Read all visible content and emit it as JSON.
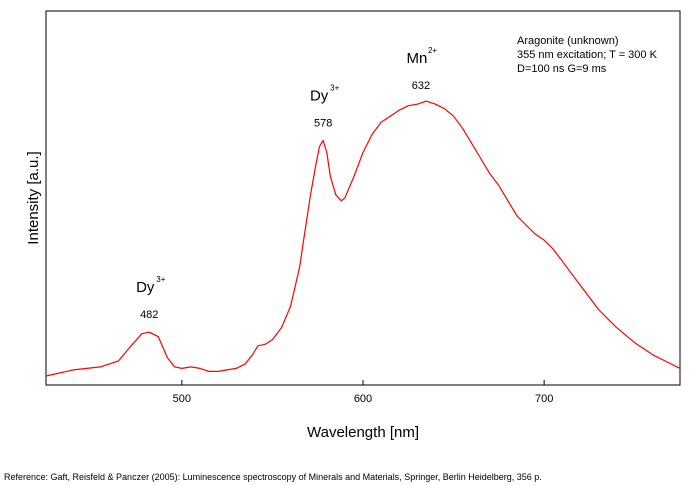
{
  "chart_data": {
    "type": "line",
    "title": "",
    "xlabel": "Wavelength [nm]",
    "ylabel": "Intensity [a.u.]",
    "xlim": [
      425,
      775
    ],
    "ylim": [
      0,
      1
    ],
    "x_ticks": [
      500,
      600,
      700
    ],
    "x_tick_labels": [
      "500",
      "600",
      "700"
    ],
    "y_tick_labels": [],
    "grid": false,
    "annotation_lines": [
      "Aragonite (unknown)",
      "355 nm excitation; T = 300 K",
      "D=100 ns G=9 ms"
    ],
    "peak_labels": [
      {
        "ion": "Dy",
        "charge": "3+",
        "wavelength": "482",
        "x": 482
      },
      {
        "ion": "Dy",
        "charge": "3+",
        "wavelength": "578",
        "x": 578
      },
      {
        "ion": "Mn",
        "charge": "2+",
        "wavelength": "632",
        "x": 632
      }
    ],
    "series": [
      {
        "color": "#ff0000",
        "x": [
          425,
          440,
          455,
          465,
          472,
          478,
          482,
          487,
          492,
          496,
          500,
          505,
          510,
          515,
          520,
          525,
          530,
          535,
          539,
          542,
          546,
          550,
          555,
          560,
          565,
          568,
          571,
          574,
          576,
          578,
          580,
          582,
          585,
          588,
          590,
          595,
          600,
          605,
          610,
          615,
          620,
          625,
          630,
          635,
          640,
          645,
          650,
          655,
          660,
          665,
          670,
          675,
          680,
          685,
          690,
          695,
          700,
          705,
          710,
          715,
          720,
          725,
          730,
          735,
          740,
          745,
          750,
          755,
          760,
          765,
          770,
          775
        ],
        "y": [
          0.02,
          0.04,
          0.05,
          0.07,
          0.12,
          0.16,
          0.165,
          0.15,
          0.08,
          0.05,
          0.045,
          0.05,
          0.045,
          0.035,
          0.035,
          0.04,
          0.045,
          0.06,
          0.09,
          0.12,
          0.125,
          0.14,
          0.18,
          0.25,
          0.38,
          0.5,
          0.62,
          0.72,
          0.78,
          0.8,
          0.76,
          0.68,
          0.62,
          0.6,
          0.61,
          0.68,
          0.76,
          0.82,
          0.86,
          0.88,
          0.9,
          0.915,
          0.92,
          0.93,
          0.92,
          0.905,
          0.88,
          0.84,
          0.79,
          0.74,
          0.69,
          0.65,
          0.6,
          0.55,
          0.52,
          0.49,
          0.47,
          0.44,
          0.4,
          0.36,
          0.32,
          0.28,
          0.24,
          0.21,
          0.18,
          0.155,
          0.13,
          0.11,
          0.09,
          0.075,
          0.06,
          0.045
        ]
      }
    ]
  },
  "reference": "Reference: Gaft, Reisfeld & Panczer (2005): Luminescence spectroscopy of Minerals and Materials, Springer, Berlin Heidelberg, 356 p."
}
